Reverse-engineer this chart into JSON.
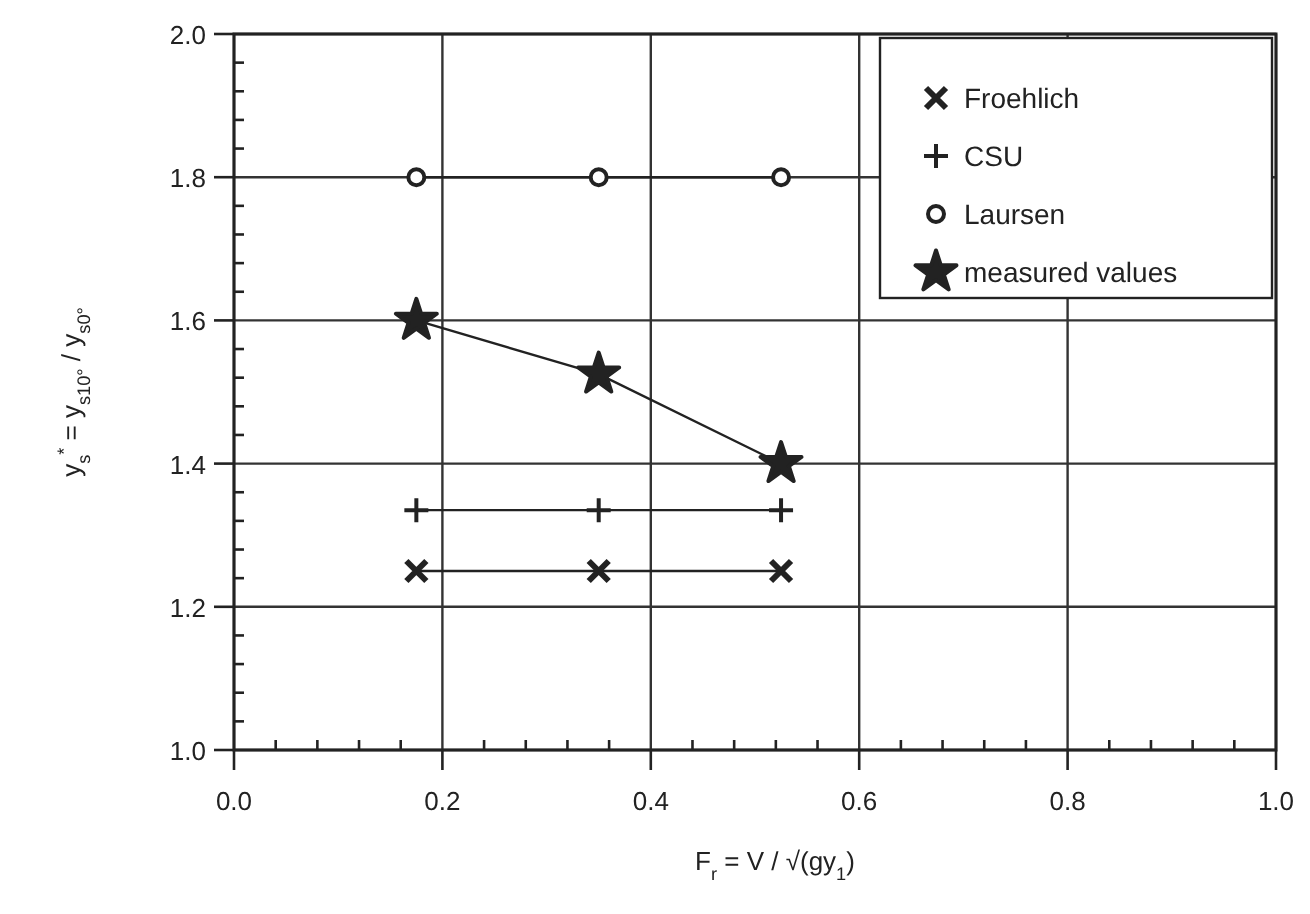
{
  "chart_data": {
    "type": "line",
    "xlabel": "F$_{r}$ = V / √(gy$_{1}$)",
    "ylabel": "y$_{s}$$^{*}$ = y$_{s10°}$ / y$_{s0°}$",
    "x": [
      0.175,
      0.35,
      0.525
    ],
    "series": [
      {
        "name": "Froehlich",
        "color": "#222222",
        "marker": "x",
        "values": [
          1.25,
          1.25,
          1.25
        ]
      },
      {
        "name": "CSU",
        "color": "#222222",
        "marker": "cross",
        "values": [
          1.335,
          1.335,
          1.335
        ]
      },
      {
        "name": "Laursen",
        "color": "#222222",
        "marker": "circle",
        "values": [
          1.8,
          1.8,
          1.8
        ]
      },
      {
        "name": "measured values",
        "color": "#222222",
        "marker": "star",
        "values": [
          1.6,
          1.525,
          1.4
        ]
      }
    ],
    "xlim": [
      0,
      1
    ],
    "ylim": [
      1,
      2
    ],
    "xticks": [
      {
        "value": 0,
        "label": "0.0"
      },
      {
        "value": 0.04,
        "label": null
      },
      {
        "value": 0.08,
        "label": null
      },
      {
        "value": 0.12,
        "label": null
      },
      {
        "value": 0.16,
        "label": null
      },
      {
        "value": 0.2,
        "label": "0.2"
      },
      {
        "value": 0.24,
        "label": null
      },
      {
        "value": 0.28,
        "label": null
      },
      {
        "value": 0.32,
        "label": null
      },
      {
        "value": 0.36,
        "label": null
      },
      {
        "value": 0.4,
        "label": "0.4"
      },
      {
        "value": 0.44,
        "label": null
      },
      {
        "value": 0.48,
        "label": null
      },
      {
        "value": 0.52,
        "label": null
      },
      {
        "value": 0.56,
        "label": null
      },
      {
        "value": 0.6,
        "label": "0.6"
      },
      {
        "value": 0.64,
        "label": null
      },
      {
        "value": 0.68,
        "label": null
      },
      {
        "value": 0.72,
        "label": null
      },
      {
        "value": 0.76,
        "label": null
      },
      {
        "value": 0.8,
        "label": "0.8"
      },
      {
        "value": 0.84,
        "label": null
      },
      {
        "value": 0.88,
        "label": null
      },
      {
        "value": 0.92,
        "label": null
      },
      {
        "value": 0.96,
        "label": null
      },
      {
        "value": 1,
        "label": "1.0"
      }
    ],
    "yticks": [
      {
        "value": 1,
        "label": "1.0"
      },
      {
        "value": 1.04,
        "label": null
      },
      {
        "value": 1.08,
        "label": null
      },
      {
        "value": 1.12,
        "label": null
      },
      {
        "value": 1.16,
        "label": null
      },
      {
        "value": 1.2,
        "label": "1.2"
      },
      {
        "value": 1.24,
        "label": null
      },
      {
        "value": 1.28,
        "label": null
      },
      {
        "value": 1.32,
        "label": null
      },
      {
        "value": 1.36,
        "label": null
      },
      {
        "value": 1.4,
        "label": "1.4"
      },
      {
        "value": 1.44,
        "label": null
      },
      {
        "value": 1.48,
        "label": null
      },
      {
        "value": 1.52,
        "label": null
      },
      {
        "value": 1.56,
        "label": null
      },
      {
        "value": 1.6,
        "label": "1.6"
      },
      {
        "value": 1.64,
        "label": null
      },
      {
        "value": 1.68,
        "label": null
      },
      {
        "value": 1.72,
        "label": null
      },
      {
        "value": 1.76,
        "label": null
      },
      {
        "value": 1.8,
        "label": "1.8"
      },
      {
        "value": 1.84,
        "label": null
      },
      {
        "value": 1.88,
        "label": null
      },
      {
        "value": 1.92,
        "label": null
      },
      {
        "value": 1.96,
        "label": null
      },
      {
        "value": 2,
        "label": "2.0"
      }
    ],
    "grid": true,
    "legend": "top right",
    "line_style": "solid"
  }
}
